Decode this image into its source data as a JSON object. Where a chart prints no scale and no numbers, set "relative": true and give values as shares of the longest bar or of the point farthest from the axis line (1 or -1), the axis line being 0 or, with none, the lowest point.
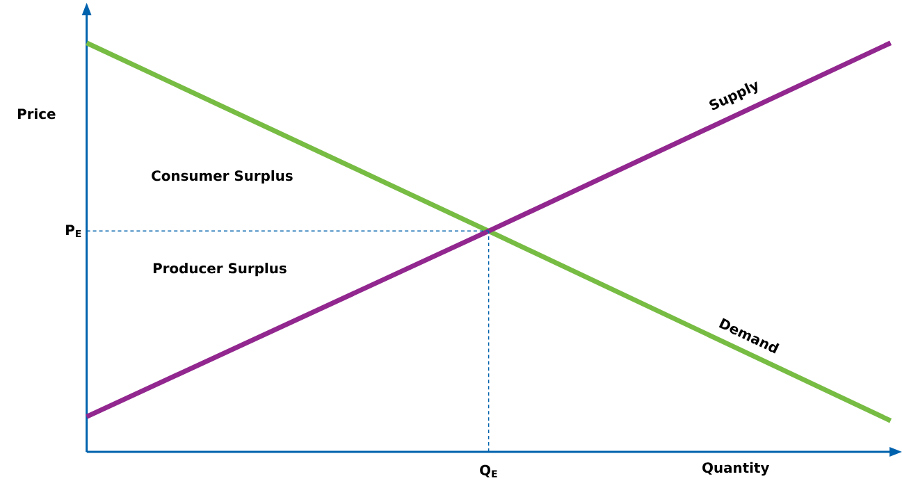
{
  "chart_data": {
    "type": "line",
    "relative": true,
    "xlabel": "Quantity",
    "ylabel": "Price",
    "categories": [
      null,
      null,
      null
    ],
    "series": [
      {
        "name": "Demand",
        "color": "#77bc43",
        "values": [
          1,
          0.54,
          0.076
        ]
      },
      {
        "name": "Supply",
        "color": "#92278f",
        "values": [
          0.086,
          0.54,
          1
        ]
      }
    ],
    "ref_lines": [
      {
        "axis": "y",
        "value": 0.54,
        "label": "P$_{E}$",
        "color": "#0062ad",
        "line_style": "dashed"
      },
      {
        "axis": "x",
        "label": "Q$_{E}$",
        "color": "#0062ad",
        "line_style": "dashed"
      }
    ],
    "annotations": [
      "Consumer Surplus",
      "Producer Surplus"
    ]
  }
}
